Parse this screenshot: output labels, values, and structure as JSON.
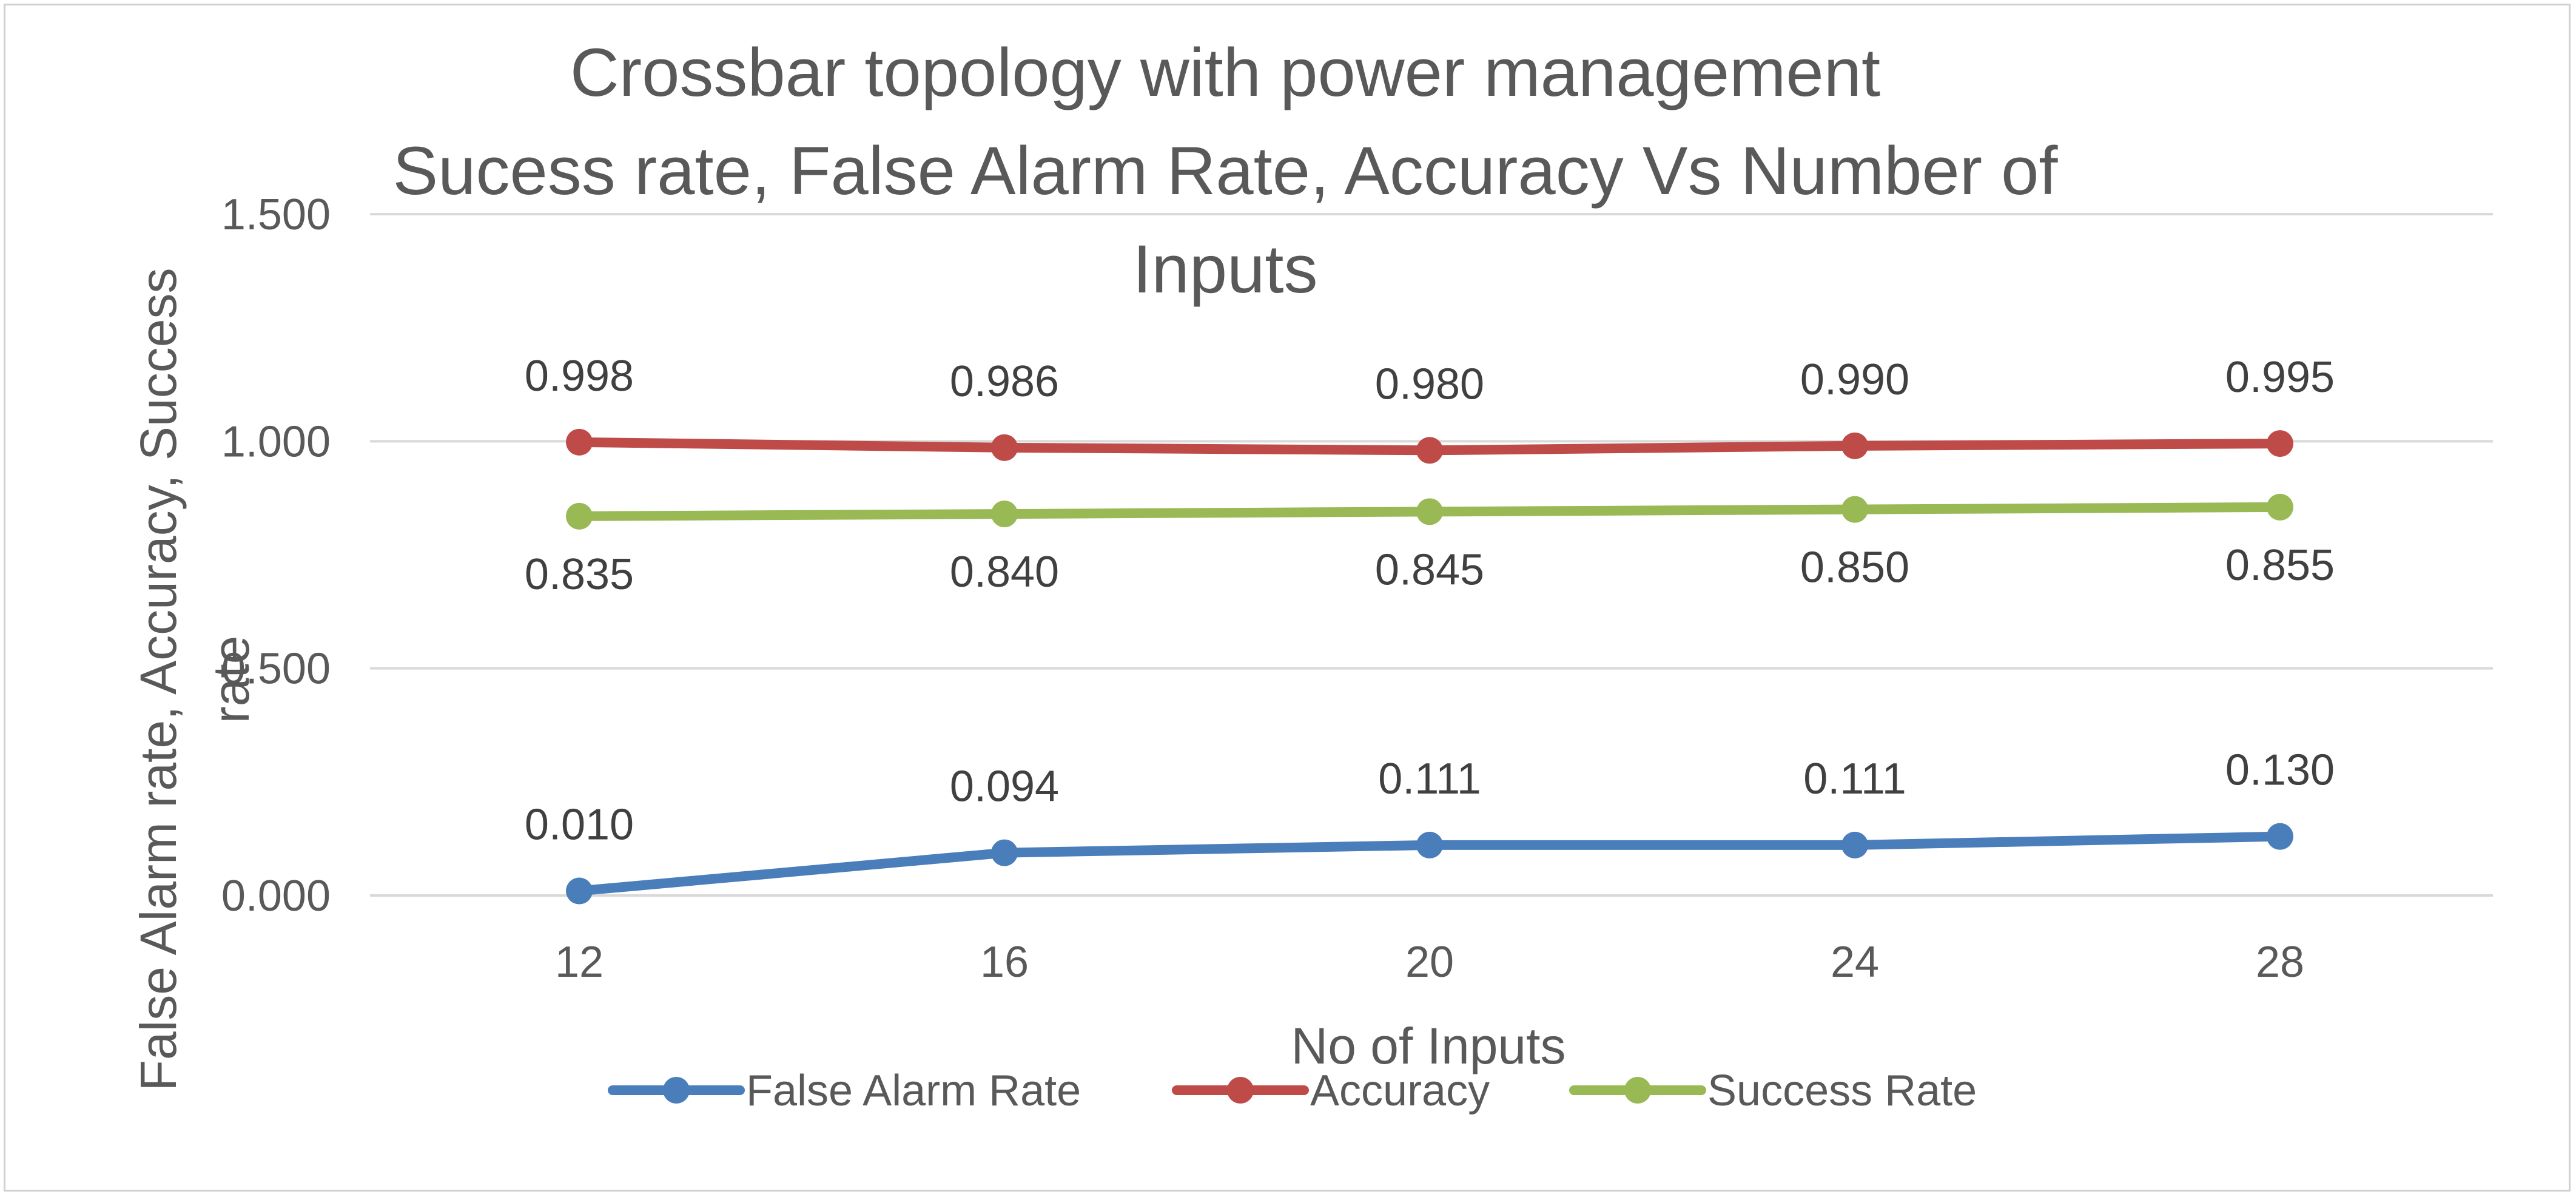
{
  "chart_data": {
    "type": "line",
    "title_lines": [
      "Crossbar topology with power management",
      "Sucess rate, False Alarm Rate, Accuracy Vs Number of",
      "Inputs"
    ],
    "xlabel": "No of Inputs",
    "ylabel_lines": [
      "False Alarm rate, Accuracy, Success",
      "rate"
    ],
    "categories": [
      "12",
      "16",
      "20",
      "24",
      "28"
    ],
    "ylim": [
      0,
      1.5
    ],
    "yticks": [
      0,
      0.5,
      1.0,
      1.5
    ],
    "ytick_labels": [
      "0.000",
      "0.500",
      "1.000",
      "1.500"
    ],
    "grid": true,
    "legend_position": "bottom",
    "series": [
      {
        "name": "False Alarm Rate",
        "color": "#4a7ebb",
        "values": [
          0.01,
          0.094,
          0.111,
          0.111,
          0.13
        ],
        "labels": [
          "0.010",
          "0.094",
          "0.111",
          "0.111",
          "0.130"
        ],
        "label_position": "above"
      },
      {
        "name": "Accuracy",
        "color": "#be4b48",
        "values": [
          0.998,
          0.986,
          0.98,
          0.99,
          0.995
        ],
        "labels": [
          "0.998",
          "0.986",
          "0.980",
          "0.990",
          "0.995"
        ],
        "label_position": "above"
      },
      {
        "name": "Success Rate",
        "color": "#98b954",
        "values": [
          0.835,
          0.84,
          0.845,
          0.85,
          0.855
        ],
        "labels": [
          "0.835",
          "0.840",
          "0.845",
          "0.850",
          "0.855"
        ],
        "label_position": "below"
      }
    ],
    "gridline_color": "#d9d9d9"
  }
}
